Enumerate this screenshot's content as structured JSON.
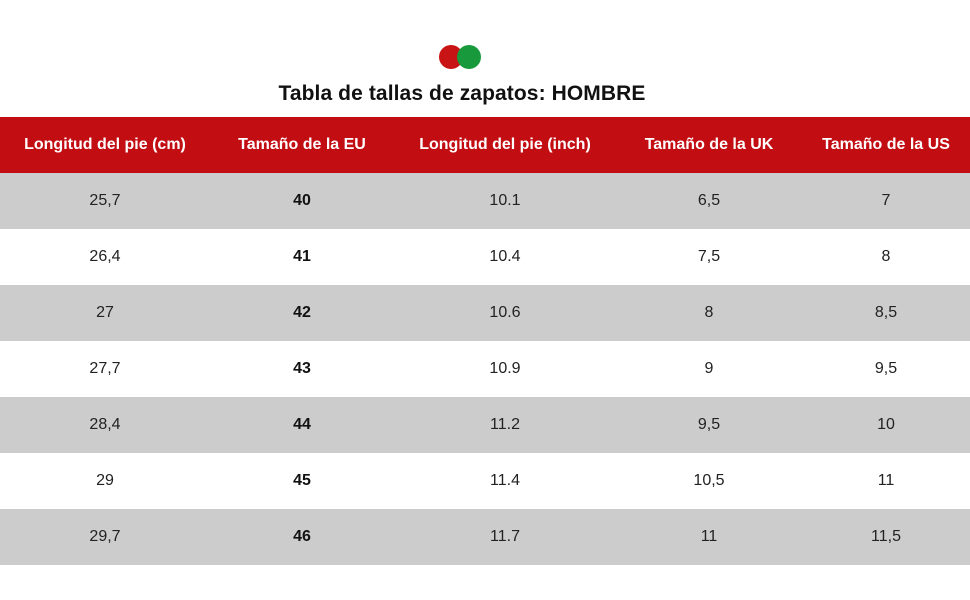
{
  "logo": {
    "colors": [
      "#c81414",
      "#189a3c"
    ]
  },
  "title": "Tabla de tallas de zapatos: HOMBRE",
  "table": {
    "header_bg": "#c20d12",
    "headers": [
      "Longitud del pie (cm)",
      "Tamaño de la EU",
      "Longitud del pie (inch)",
      "Tamaño de la UK",
      "Tamaño de la US"
    ],
    "rows": [
      [
        "25,7",
        "40",
        "10.1",
        "6,5",
        "7"
      ],
      [
        "26,4",
        "41",
        "10.4",
        "7,5",
        "8"
      ],
      [
        "27",
        "42",
        "10.6",
        "8",
        "8,5"
      ],
      [
        "27,7",
        "43",
        "10.9",
        "9",
        "9,5"
      ],
      [
        "28,4",
        "44",
        "11.2",
        "9,5",
        "10"
      ],
      [
        "29",
        "45",
        "11.4",
        "10,5",
        "11"
      ],
      [
        "29,7",
        "46",
        "11.7",
        "11",
        "11,5"
      ]
    ]
  }
}
